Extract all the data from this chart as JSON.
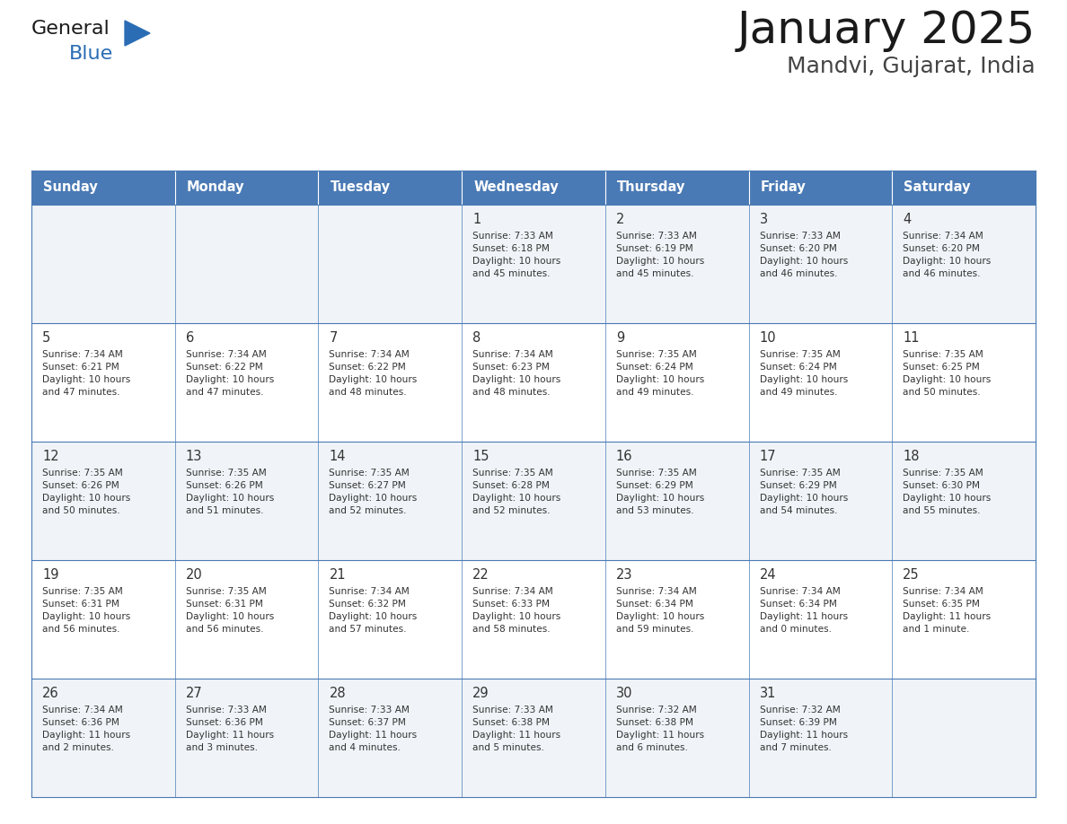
{
  "title": "January 2025",
  "subtitle": "Mandvi, Gujarat, India",
  "header_bg_color": "#4a7ab5",
  "header_text_color": "#ffffff",
  "day_names": [
    "Sunday",
    "Monday",
    "Tuesday",
    "Wednesday",
    "Thursday",
    "Friday",
    "Saturday"
  ],
  "row_bg_colors": [
    "#f0f4f8",
    "#ffffff"
  ],
  "border_color": "#4a7ab5",
  "text_color": "#333333",
  "title_color": "#1a1a1a",
  "subtitle_color": "#444444",
  "logo_general_color": "#1a1a1a",
  "logo_blue_color": "#2a6db5",
  "calendar_data": [
    [
      {
        "day": "",
        "info": ""
      },
      {
        "day": "",
        "info": ""
      },
      {
        "day": "",
        "info": ""
      },
      {
        "day": "1",
        "info": "Sunrise: 7:33 AM\nSunset: 6:18 PM\nDaylight: 10 hours\nand 45 minutes."
      },
      {
        "day": "2",
        "info": "Sunrise: 7:33 AM\nSunset: 6:19 PM\nDaylight: 10 hours\nand 45 minutes."
      },
      {
        "day": "3",
        "info": "Sunrise: 7:33 AM\nSunset: 6:20 PM\nDaylight: 10 hours\nand 46 minutes."
      },
      {
        "day": "4",
        "info": "Sunrise: 7:34 AM\nSunset: 6:20 PM\nDaylight: 10 hours\nand 46 minutes."
      }
    ],
    [
      {
        "day": "5",
        "info": "Sunrise: 7:34 AM\nSunset: 6:21 PM\nDaylight: 10 hours\nand 47 minutes."
      },
      {
        "day": "6",
        "info": "Sunrise: 7:34 AM\nSunset: 6:22 PM\nDaylight: 10 hours\nand 47 minutes."
      },
      {
        "day": "7",
        "info": "Sunrise: 7:34 AM\nSunset: 6:22 PM\nDaylight: 10 hours\nand 48 minutes."
      },
      {
        "day": "8",
        "info": "Sunrise: 7:34 AM\nSunset: 6:23 PM\nDaylight: 10 hours\nand 48 minutes."
      },
      {
        "day": "9",
        "info": "Sunrise: 7:35 AM\nSunset: 6:24 PM\nDaylight: 10 hours\nand 49 minutes."
      },
      {
        "day": "10",
        "info": "Sunrise: 7:35 AM\nSunset: 6:24 PM\nDaylight: 10 hours\nand 49 minutes."
      },
      {
        "day": "11",
        "info": "Sunrise: 7:35 AM\nSunset: 6:25 PM\nDaylight: 10 hours\nand 50 minutes."
      }
    ],
    [
      {
        "day": "12",
        "info": "Sunrise: 7:35 AM\nSunset: 6:26 PM\nDaylight: 10 hours\nand 50 minutes."
      },
      {
        "day": "13",
        "info": "Sunrise: 7:35 AM\nSunset: 6:26 PM\nDaylight: 10 hours\nand 51 minutes."
      },
      {
        "day": "14",
        "info": "Sunrise: 7:35 AM\nSunset: 6:27 PM\nDaylight: 10 hours\nand 52 minutes."
      },
      {
        "day": "15",
        "info": "Sunrise: 7:35 AM\nSunset: 6:28 PM\nDaylight: 10 hours\nand 52 minutes."
      },
      {
        "day": "16",
        "info": "Sunrise: 7:35 AM\nSunset: 6:29 PM\nDaylight: 10 hours\nand 53 minutes."
      },
      {
        "day": "17",
        "info": "Sunrise: 7:35 AM\nSunset: 6:29 PM\nDaylight: 10 hours\nand 54 minutes."
      },
      {
        "day": "18",
        "info": "Sunrise: 7:35 AM\nSunset: 6:30 PM\nDaylight: 10 hours\nand 55 minutes."
      }
    ],
    [
      {
        "day": "19",
        "info": "Sunrise: 7:35 AM\nSunset: 6:31 PM\nDaylight: 10 hours\nand 56 minutes."
      },
      {
        "day": "20",
        "info": "Sunrise: 7:35 AM\nSunset: 6:31 PM\nDaylight: 10 hours\nand 56 minutes."
      },
      {
        "day": "21",
        "info": "Sunrise: 7:34 AM\nSunset: 6:32 PM\nDaylight: 10 hours\nand 57 minutes."
      },
      {
        "day": "22",
        "info": "Sunrise: 7:34 AM\nSunset: 6:33 PM\nDaylight: 10 hours\nand 58 minutes."
      },
      {
        "day": "23",
        "info": "Sunrise: 7:34 AM\nSunset: 6:34 PM\nDaylight: 10 hours\nand 59 minutes."
      },
      {
        "day": "24",
        "info": "Sunrise: 7:34 AM\nSunset: 6:34 PM\nDaylight: 11 hours\nand 0 minutes."
      },
      {
        "day": "25",
        "info": "Sunrise: 7:34 AM\nSunset: 6:35 PM\nDaylight: 11 hours\nand 1 minute."
      }
    ],
    [
      {
        "day": "26",
        "info": "Sunrise: 7:34 AM\nSunset: 6:36 PM\nDaylight: 11 hours\nand 2 minutes."
      },
      {
        "day": "27",
        "info": "Sunrise: 7:33 AM\nSunset: 6:36 PM\nDaylight: 11 hours\nand 3 minutes."
      },
      {
        "day": "28",
        "info": "Sunrise: 7:33 AM\nSunset: 6:37 PM\nDaylight: 11 hours\nand 4 minutes."
      },
      {
        "day": "29",
        "info": "Sunrise: 7:33 AM\nSunset: 6:38 PM\nDaylight: 11 hours\nand 5 minutes."
      },
      {
        "day": "30",
        "info": "Sunrise: 7:32 AM\nSunset: 6:38 PM\nDaylight: 11 hours\nand 6 minutes."
      },
      {
        "day": "31",
        "info": "Sunrise: 7:32 AM\nSunset: 6:39 PM\nDaylight: 11 hours\nand 7 minutes."
      },
      {
        "day": "",
        "info": ""
      }
    ]
  ]
}
